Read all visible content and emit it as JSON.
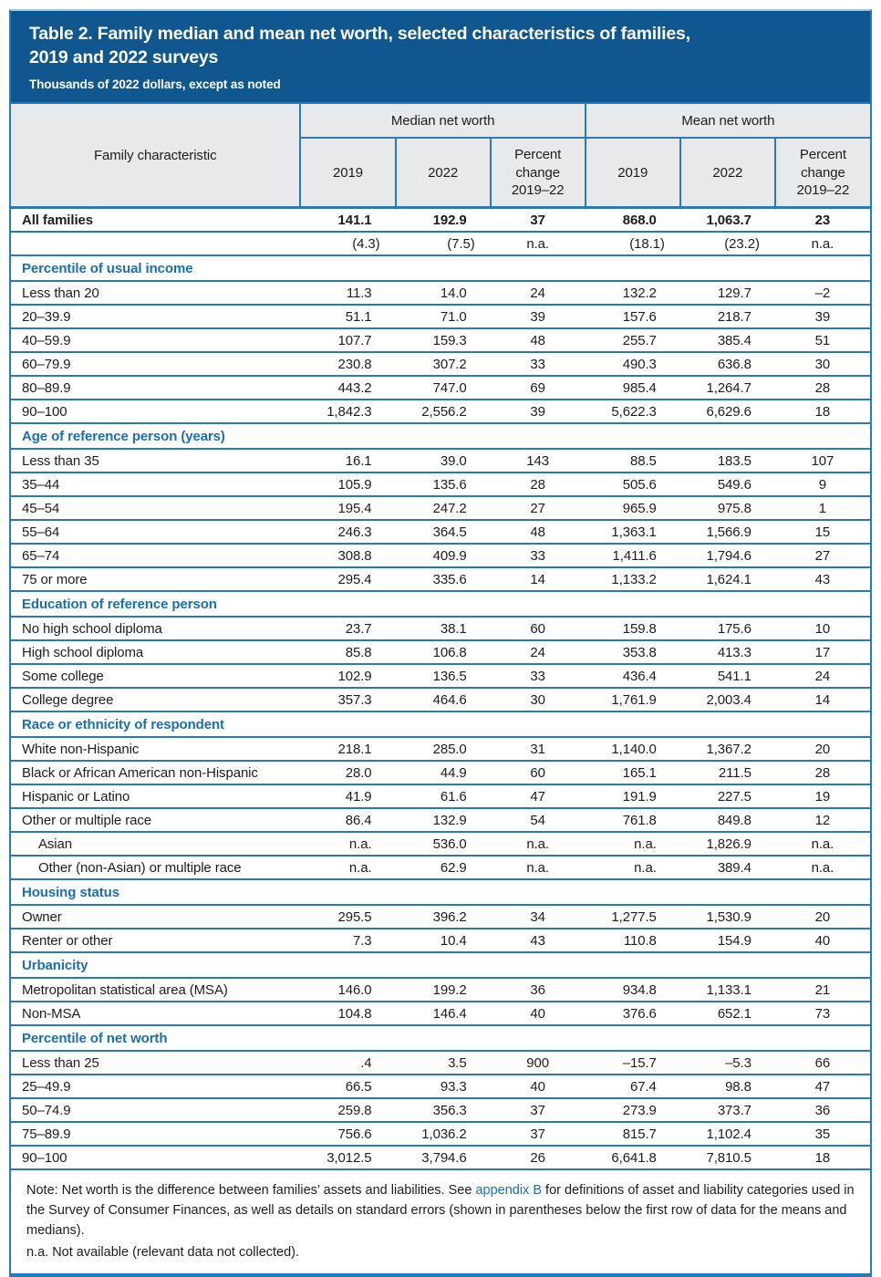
{
  "header": {
    "title_line1": "Table 2. Family median and mean net worth, selected characteristics of families,",
    "title_line2": "2019 and 2022 surveys",
    "subtitle": "Thousands of 2022 dollars, except as noted",
    "bar_color": "#0f578e",
    "line_color": "#2b79b7",
    "section_text_color": "#1b6fae"
  },
  "table": {
    "char_header": "Family characteristic",
    "group_headers": [
      "Median net worth",
      "Mean net worth"
    ],
    "sub_headers": [
      "2019",
      "2022",
      "Percent\nchange\n2019–22",
      "2019",
      "2022",
      "Percent\nchange\n2019–22"
    ],
    "rows": [
      {
        "type": "data",
        "bold": true,
        "label": "All families",
        "values": [
          "141.1",
          "192.9",
          "37",
          "868.0",
          "1,063.7",
          "23"
        ]
      },
      {
        "type": "se",
        "label": "",
        "values": [
          "(4.3)",
          "(7.5)",
          "n.a.",
          "(18.1)",
          "(23.2)",
          "n.a."
        ]
      },
      {
        "type": "section",
        "label": "Percentile of usual income"
      },
      {
        "type": "data",
        "label": "Less than 20",
        "values": [
          "11.3",
          "14.0",
          "24",
          "132.2",
          "129.7",
          "–2"
        ]
      },
      {
        "type": "data",
        "label": "20–39.9",
        "values": [
          "51.1",
          "71.0",
          "39",
          "157.6",
          "218.7",
          "39"
        ]
      },
      {
        "type": "data",
        "label": "40–59.9",
        "values": [
          "107.7",
          "159.3",
          "48",
          "255.7",
          "385.4",
          "51"
        ]
      },
      {
        "type": "data",
        "label": "60–79.9",
        "values": [
          "230.8",
          "307.2",
          "33",
          "490.3",
          "636.8",
          "30"
        ]
      },
      {
        "type": "data",
        "label": "80–89.9",
        "values": [
          "443.2",
          "747.0",
          "69",
          "985.4",
          "1,264.7",
          "28"
        ]
      },
      {
        "type": "data",
        "label": "90–100",
        "values": [
          "1,842.3",
          "2,556.2",
          "39",
          "5,622.3",
          "6,629.6",
          "18"
        ]
      },
      {
        "type": "section",
        "label": "Age of reference person (years)"
      },
      {
        "type": "data",
        "label": "Less than 35",
        "values": [
          "16.1",
          "39.0",
          "143",
          "88.5",
          "183.5",
          "107"
        ]
      },
      {
        "type": "data",
        "label": "35–44",
        "values": [
          "105.9",
          "135.6",
          "28",
          "505.6",
          "549.6",
          "9"
        ]
      },
      {
        "type": "data",
        "label": "45–54",
        "values": [
          "195.4",
          "247.2",
          "27",
          "965.9",
          "975.8",
          "1"
        ]
      },
      {
        "type": "data",
        "label": "55–64",
        "values": [
          "246.3",
          "364.5",
          "48",
          "1,363.1",
          "1,566.9",
          "15"
        ]
      },
      {
        "type": "data",
        "label": "65–74",
        "values": [
          "308.8",
          "409.9",
          "33",
          "1,411.6",
          "1,794.6",
          "27"
        ]
      },
      {
        "type": "data",
        "label": "75 or more",
        "values": [
          "295.4",
          "335.6",
          "14",
          "1,133.2",
          "1,624.1",
          "43"
        ]
      },
      {
        "type": "section",
        "label": "Education of reference person"
      },
      {
        "type": "data",
        "label": "No high school diploma",
        "values": [
          "23.7",
          "38.1",
          "60",
          "159.8",
          "175.6",
          "10"
        ]
      },
      {
        "type": "data",
        "label": "High school diploma",
        "values": [
          "85.8",
          "106.8",
          "24",
          "353.8",
          "413.3",
          "17"
        ]
      },
      {
        "type": "data",
        "label": "Some college",
        "values": [
          "102.9",
          "136.5",
          "33",
          "436.4",
          "541.1",
          "24"
        ]
      },
      {
        "type": "data",
        "label": "College degree",
        "values": [
          "357.3",
          "464.6",
          "30",
          "1,761.9",
          "2,003.4",
          "14"
        ]
      },
      {
        "type": "section",
        "label": "Race or ethnicity of respondent"
      },
      {
        "type": "data",
        "label": "White non-Hispanic",
        "values": [
          "218.1",
          "285.0",
          "31",
          "1,140.0",
          "1,367.2",
          "20"
        ]
      },
      {
        "type": "data",
        "label": "Black or African American non-Hispanic",
        "values": [
          "28.0",
          "44.9",
          "60",
          "165.1",
          "211.5",
          "28"
        ]
      },
      {
        "type": "data",
        "label": "Hispanic or Latino",
        "values": [
          "41.9",
          "61.6",
          "47",
          "191.9",
          "227.5",
          "19"
        ]
      },
      {
        "type": "data",
        "label": "Other or multiple race",
        "values": [
          "86.4",
          "132.9",
          "54",
          "761.8",
          "849.8",
          "12"
        ]
      },
      {
        "type": "data",
        "indent": true,
        "label": "Asian",
        "values": [
          "n.a.",
          "536.0",
          "n.a.",
          "n.a.",
          "1,826.9",
          "n.a."
        ]
      },
      {
        "type": "data",
        "indent": true,
        "label": "Other (non-Asian) or multiple race",
        "values": [
          "n.a.",
          "62.9",
          "n.a.",
          "n.a.",
          "389.4",
          "n.a."
        ]
      },
      {
        "type": "section",
        "label": "Housing status"
      },
      {
        "type": "data",
        "label": "Owner",
        "values": [
          "295.5",
          "396.2",
          "34",
          "1,277.5",
          "1,530.9",
          "20"
        ]
      },
      {
        "type": "data",
        "label": "Renter or other",
        "values": [
          "7.3",
          "10.4",
          "43",
          "110.8",
          "154.9",
          "40"
        ]
      },
      {
        "type": "section",
        "label": "Urbanicity"
      },
      {
        "type": "data",
        "label": "Metropolitan statistical area (MSA)",
        "values": [
          "146.0",
          "199.2",
          "36",
          "934.8",
          "1,133.1",
          "21"
        ]
      },
      {
        "type": "data",
        "label": "Non-MSA",
        "values": [
          "104.8",
          "146.4",
          "40",
          "376.6",
          "652.1",
          "73"
        ]
      },
      {
        "type": "section",
        "label": "Percentile of net worth"
      },
      {
        "type": "data",
        "label": "Less than 25",
        "values": [
          ".4",
          "3.5",
          "900",
          "–15.7",
          "–5.3",
          "66"
        ]
      },
      {
        "type": "data",
        "label": "25–49.9",
        "values": [
          "66.5",
          "93.3",
          "40",
          "67.4",
          "98.8",
          "47"
        ]
      },
      {
        "type": "data",
        "label": "50–74.9",
        "values": [
          "259.8",
          "356.3",
          "37",
          "273.9",
          "373.7",
          "36"
        ]
      },
      {
        "type": "data",
        "label": "75–89.9",
        "values": [
          "756.6",
          "1,036.2",
          "37",
          "815.7",
          "1,102.4",
          "35"
        ]
      },
      {
        "type": "data",
        "label": "90–100",
        "values": [
          "3,012.5",
          "3,794.6",
          "26",
          "6,641.8",
          "7,810.5",
          "18"
        ]
      }
    ]
  },
  "note": {
    "before_link": "Note: Net worth is the difference between families’ assets and liabilities. See ",
    "link": "appendix B",
    "after_link": " for definitions of asset and liability categories used in the Survey of Consumer Finances, as well as details on standard errors (shown in parentheses below the first row of data for the means and medians).",
    "na_line": "n.a.  Not available (relevant data not collected)."
  }
}
